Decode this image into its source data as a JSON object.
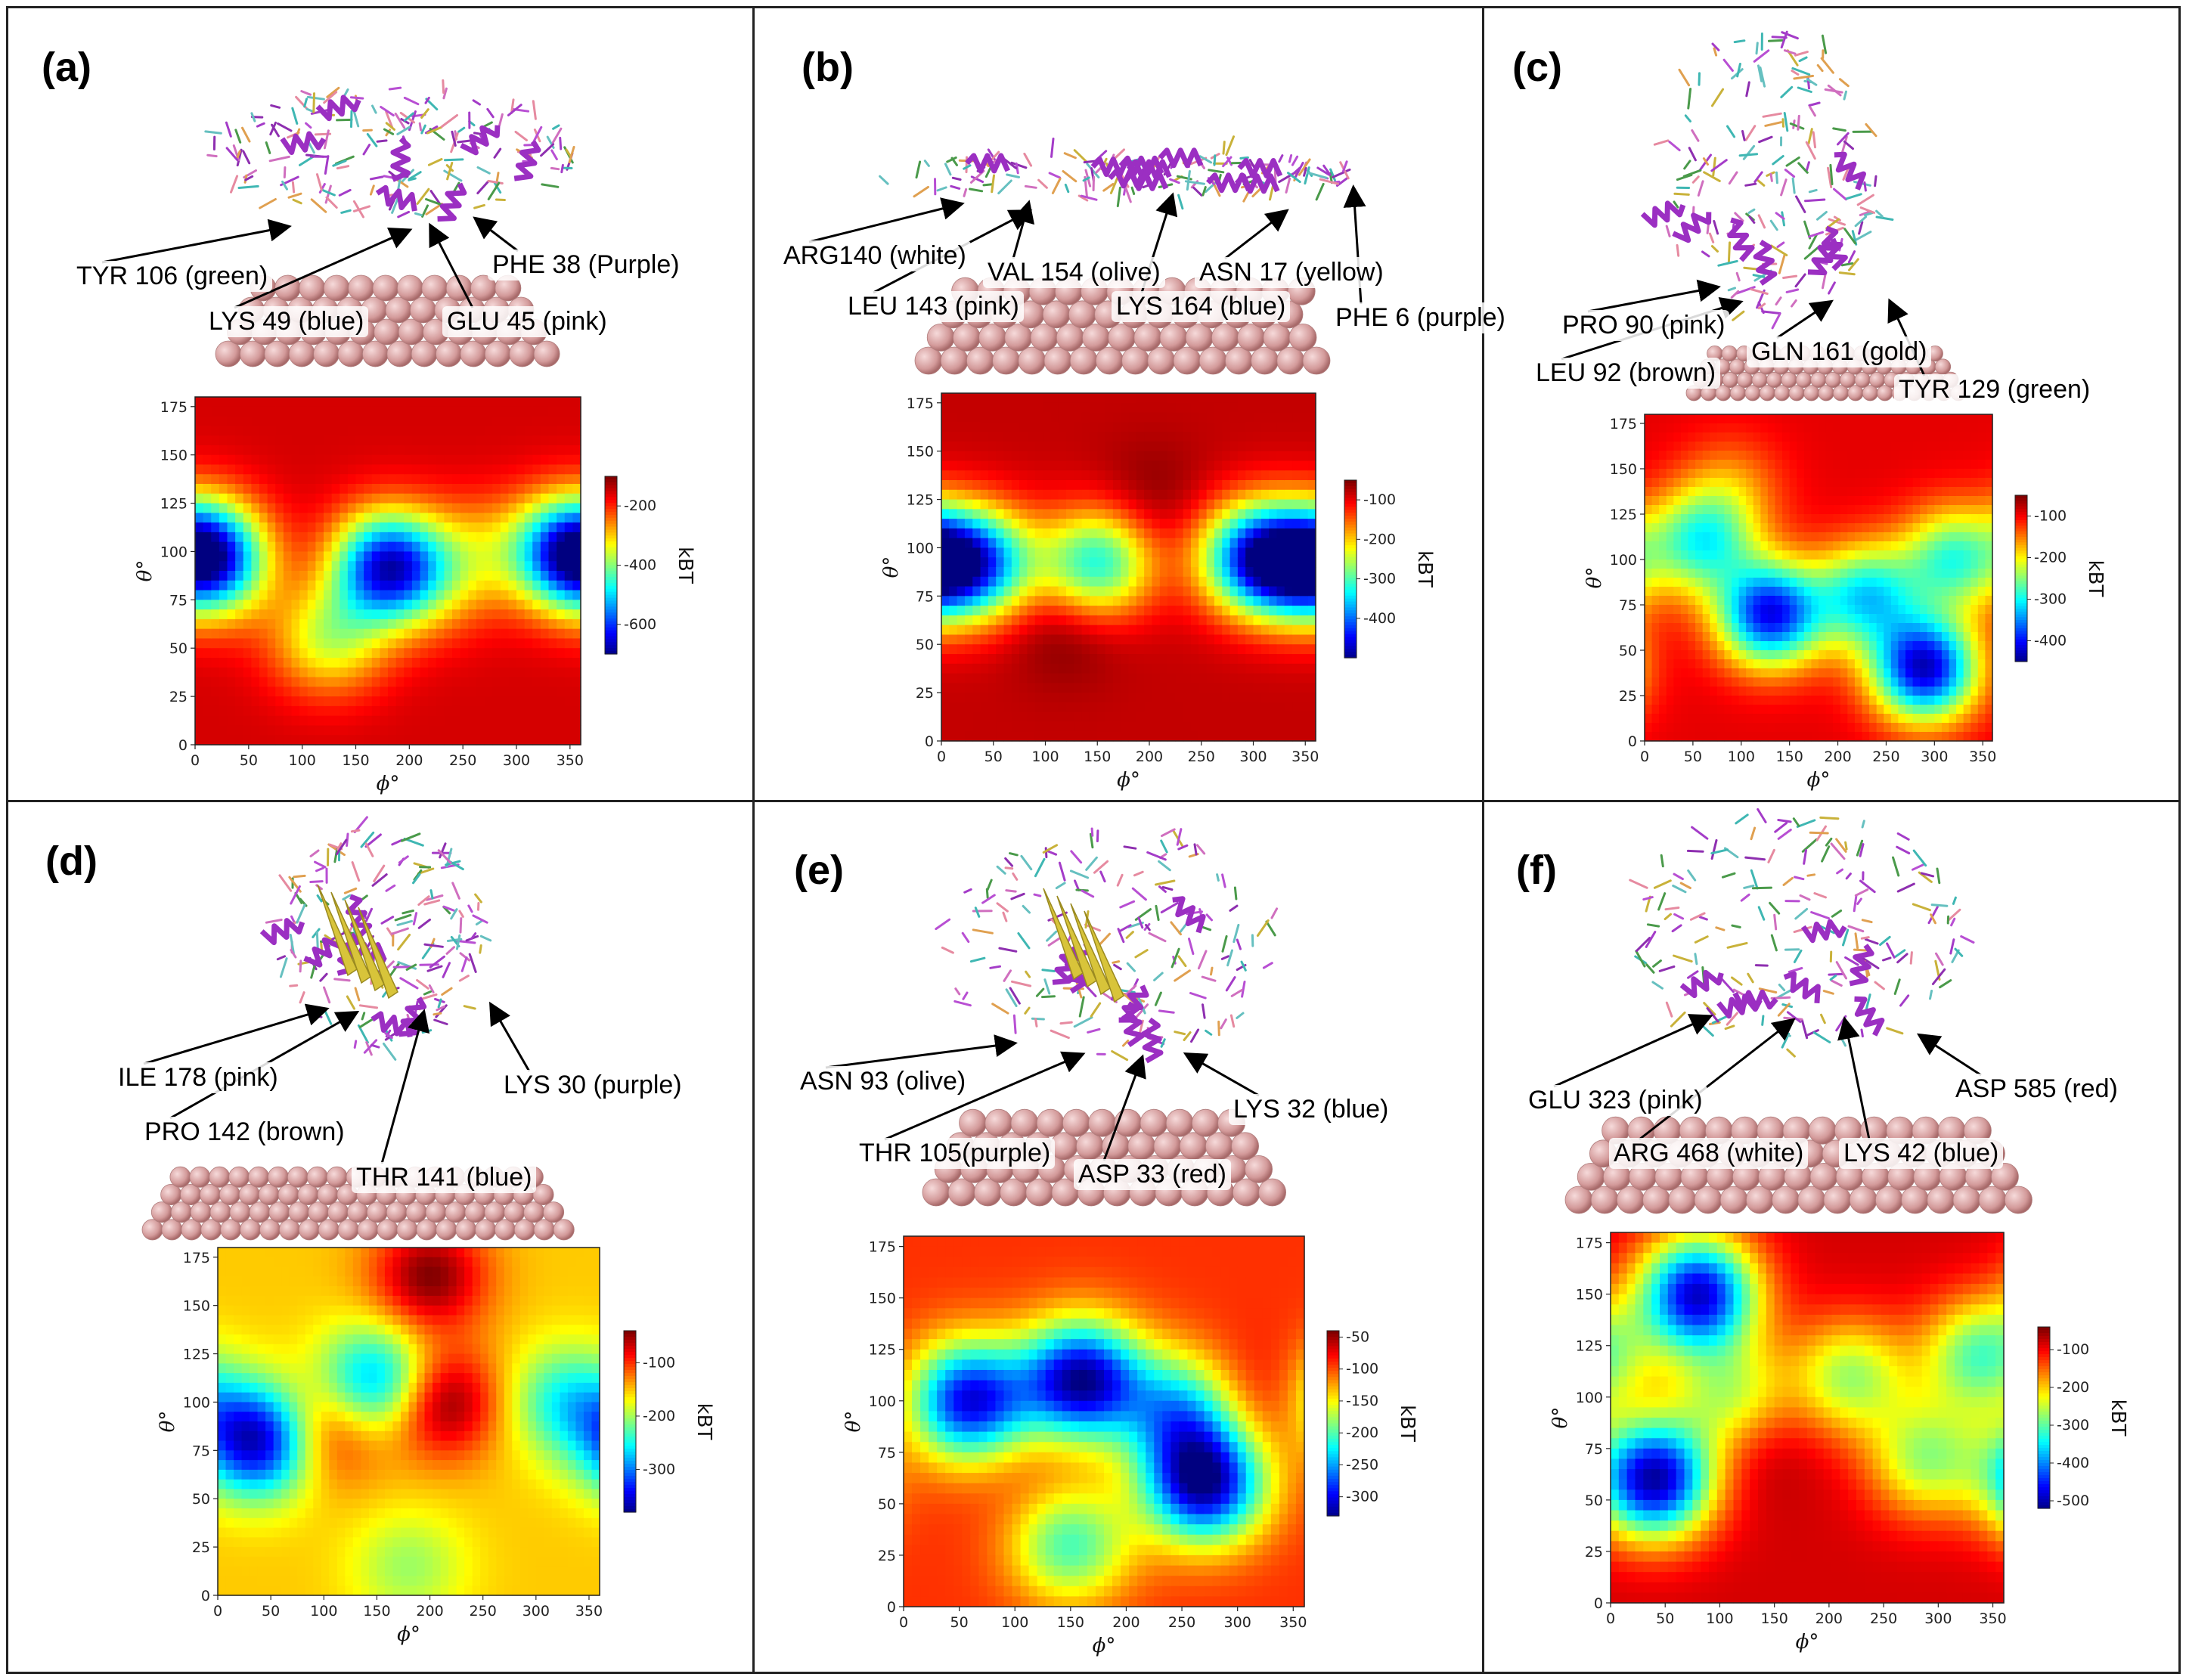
{
  "figure": {
    "panels": [
      {
        "label": "(a)",
        "annotations": [
          "TYR 106 (green)",
          "PHE 38 (Purple)",
          "LYS 49 (blue)",
          "GLU 45 (pink)"
        ]
      },
      {
        "label": "(b)",
        "annotations": [
          "ARG140 (white)",
          "VAL 154 (olive)",
          "ASN 17 (yellow)",
          "LEU 143 (pink)",
          "LYS 164 (blue)",
          "PHE 6 (purple)"
        ]
      },
      {
        "label": "(c)",
        "annotations": [
          "PRO 90 (pink)",
          "LEU 92 (brown)",
          "GLN 161 (gold)",
          "TYR 129 (green)"
        ]
      },
      {
        "label": "(d)",
        "annotations": [
          "ILE 178 (pink)",
          "LYS 30 (purple)",
          "PRO 142 (brown)",
          "THR 141 (blue)"
        ]
      },
      {
        "label": "(e)",
        "annotations": [
          "ASN 93 (olive)",
          "LYS 32 (blue)",
          "THR 105(purple)",
          "ASP 33 (red)"
        ]
      },
      {
        "label": "(f)",
        "annotations": [
          "GLU 323 (pink)",
          "ASP 585 (red)",
          "ARG 468 (white)",
          "LYS 42 (blue)"
        ]
      }
    ]
  },
  "chart_data": [
    {
      "type": "heatmap",
      "panel": "(a)",
      "xlabel": "ϕ°",
      "ylabel": "θ°",
      "colorbar_label": "kBT",
      "xlim": [
        0,
        360
      ],
      "ylim": [
        0,
        180
      ],
      "xticks": [
        0,
        50,
        100,
        150,
        200,
        250,
        300,
        350
      ],
      "yticks": [
        0,
        25,
        50,
        75,
        100,
        125,
        150,
        175
      ],
      "colorbar_range": [
        -700,
        -100
      ],
      "colorbar_ticks": [
        -200,
        -400,
        -600
      ],
      "colormap": "jet",
      "background_level": -150,
      "features": [
        {
          "phi": 20,
          "theta": 95,
          "level": -450
        },
        {
          "phi": 180,
          "theta": 92,
          "level": -650
        },
        {
          "phi": 350,
          "theta": 100,
          "level": -550
        },
        {
          "phi": 125,
          "theta": 55,
          "level": -350
        },
        {
          "phi": 265,
          "theta": 100,
          "level": -250
        },
        {
          "phi": 120,
          "theta": 92,
          "level": -120
        },
        {
          "phi": 230,
          "theta": 80,
          "level": -200
        }
      ]
    },
    {
      "type": "heatmap",
      "panel": "(b)",
      "xlabel": "ϕ°",
      "ylabel": "θ°",
      "colorbar_label": "kBT",
      "xlim": [
        0,
        360
      ],
      "ylim": [
        0,
        180
      ],
      "xticks": [
        0,
        50,
        100,
        150,
        200,
        250,
        300,
        350
      ],
      "yticks": [
        0,
        25,
        50,
        75,
        100,
        125,
        150,
        175
      ],
      "colorbar_range": [
        -500,
        -50
      ],
      "colorbar_ticks": [
        -100,
        -200,
        -300,
        -400
      ],
      "colormap": "jet",
      "background_level": -80,
      "features": [
        {
          "phi": 40,
          "theta": 92,
          "level": -330
        },
        {
          "phi": 150,
          "theta": 92,
          "level": -320
        },
        {
          "phi": 300,
          "theta": 95,
          "level": -380
        },
        {
          "phi": 350,
          "theta": 92,
          "level": -420
        },
        {
          "phi": 120,
          "theta": 60,
          "level": -40
        },
        {
          "phi": 200,
          "theta": 125,
          "level": -50
        }
      ]
    },
    {
      "type": "heatmap",
      "panel": "(c)",
      "xlabel": "ϕ°",
      "ylabel": "θ°",
      "colorbar_label": "kBT",
      "xlim": [
        0,
        360
      ],
      "ylim": [
        0,
        180
      ],
      "xticks": [
        0,
        50,
        100,
        150,
        200,
        250,
        300,
        350
      ],
      "yticks": [
        0,
        25,
        50,
        75,
        100,
        125,
        150,
        175
      ],
      "colorbar_range": [
        -450,
        -50
      ],
      "colorbar_ticks": [
        -100,
        -200,
        -300,
        -400
      ],
      "colormap": "jet",
      "background_level": -90,
      "features": [
        {
          "phi": 60,
          "theta": 110,
          "level": -280
        },
        {
          "phi": 130,
          "theta": 70,
          "level": -400
        },
        {
          "phi": 290,
          "theta": 40,
          "level": -420
        },
        {
          "phi": 230,
          "theta": 80,
          "level": -300
        },
        {
          "phi": 320,
          "theta": 100,
          "level": -280
        },
        {
          "phi": 90,
          "theta": 140,
          "level": -150
        },
        {
          "phi": 290,
          "theta": 85,
          "level": -80
        }
      ]
    },
    {
      "type": "heatmap",
      "panel": "(d)",
      "xlabel": "ϕ°",
      "ylabel": "θ°",
      "colorbar_label": "kBT",
      "xlim": [
        0,
        360
      ],
      "ylim": [
        0,
        180
      ],
      "xticks": [
        0,
        50,
        100,
        150,
        200,
        250,
        300,
        350
      ],
      "yticks": [
        0,
        25,
        50,
        75,
        100,
        125,
        150,
        175
      ],
      "colorbar_range": [
        -380,
        -40
      ],
      "colorbar_ticks": [
        -100,
        -200,
        -300
      ],
      "colormap": "jet",
      "background_level": -150,
      "features": [
        {
          "phi": 40,
          "theta": 80,
          "level": -370
        },
        {
          "phi": 150,
          "theta": 110,
          "level": -300
        },
        {
          "phi": 100,
          "theta": 85,
          "level": -60
        },
        {
          "phi": 210,
          "theta": 100,
          "level": -30
        },
        {
          "phi": 200,
          "theta": 165,
          "level": -40
        },
        {
          "phi": 330,
          "theta": 100,
          "level": -250
        },
        {
          "phi": 180,
          "theta": 15,
          "level": -200
        }
      ]
    },
    {
      "type": "heatmap",
      "panel": "(e)",
      "xlabel": "ϕ°",
      "ylabel": "θ°",
      "colorbar_label": "kBT",
      "xlim": [
        0,
        360
      ],
      "ylim": [
        0,
        180
      ],
      "xticks": [
        0,
        50,
        100,
        150,
        200,
        250,
        300,
        350
      ],
      "yticks": [
        0,
        25,
        50,
        75,
        100,
        125,
        150,
        175
      ],
      "colorbar_range": [
        -330,
        -40
      ],
      "colorbar_ticks": [
        -50,
        -100,
        -150,
        -200,
        -250,
        -300
      ],
      "colormap": "jet",
      "background_level": -90,
      "features": [
        {
          "phi": 60,
          "theta": 100,
          "level": -300
        },
        {
          "phi": 160,
          "theta": 110,
          "level": -320
        },
        {
          "phi": 270,
          "theta": 60,
          "level": -320
        },
        {
          "phi": 110,
          "theta": 70,
          "level": -80
        },
        {
          "phi": 300,
          "theta": 100,
          "level": -60
        },
        {
          "phi": 250,
          "theta": 95,
          "level": -230
        },
        {
          "phi": 150,
          "theta": 30,
          "level": -200
        }
      ]
    },
    {
      "type": "heatmap",
      "panel": "(f)",
      "xlabel": "ϕ°",
      "ylabel": "θ°",
      "colorbar_label": "kBT",
      "xlim": [
        0,
        360
      ],
      "ylim": [
        0,
        180
      ],
      "xticks": [
        0,
        50,
        100,
        150,
        200,
        250,
        300,
        350
      ],
      "yticks": [
        0,
        25,
        50,
        75,
        100,
        125,
        150,
        175
      ],
      "colorbar_range": [
        -520,
        -40
      ],
      "colorbar_ticks": [
        -100,
        -200,
        -300,
        -400,
        -500
      ],
      "colormap": "jet",
      "background_level": -80,
      "features": [
        {
          "phi": 80,
          "theta": 150,
          "level": -480
        },
        {
          "phi": 40,
          "theta": 60,
          "level": -500
        },
        {
          "phi": 110,
          "theta": 100,
          "level": -250
        },
        {
          "phi": 220,
          "theta": 110,
          "level": -260
        },
        {
          "phi": 340,
          "theta": 120,
          "level": -300
        },
        {
          "phi": 290,
          "theta": 70,
          "level": -260
        },
        {
          "phi": 130,
          "theta": 80,
          "level": -40
        }
      ]
    }
  ]
}
